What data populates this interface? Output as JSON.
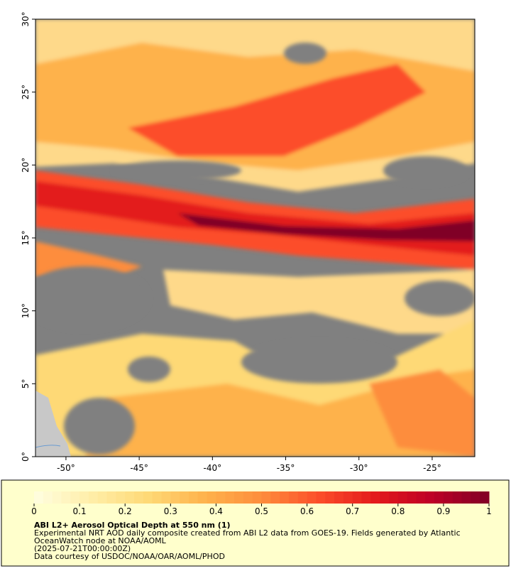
{
  "map": {
    "xlim": [
      -52.08,
      -22.09
    ],
    "ylim": [
      0,
      30
    ],
    "xticks": [
      {
        "value": -50,
        "label": "-50°"
      },
      {
        "value": -45,
        "label": "-45°"
      },
      {
        "value": -40,
        "label": "-40°"
      },
      {
        "value": -35,
        "label": "-35°"
      },
      {
        "value": -30,
        "label": "-30°"
      },
      {
        "value": -25,
        "label": "-25°"
      }
    ],
    "yticks": [
      {
        "value": 0,
        "label": "0°"
      },
      {
        "value": 5,
        "label": "5°"
      },
      {
        "value": 10,
        "label": "10°"
      },
      {
        "value": 15,
        "label": "15°"
      },
      {
        "value": 20,
        "label": "20°"
      },
      {
        "value": 25,
        "label": "25°"
      },
      {
        "value": 30,
        "label": "30°"
      }
    ]
  },
  "colorbar": {
    "lim": [
      0,
      1
    ],
    "ticks": [
      0,
      0.1,
      0.2,
      0.3,
      0.4,
      0.5,
      0.6,
      0.7,
      0.8,
      0.9,
      1
    ],
    "colors": [
      "#fffee0",
      "#ffeea8",
      "#fed976",
      "#feb24c",
      "#fd8d3c",
      "#fc4e2a",
      "#e31a1c",
      "#bd0026",
      "#800026"
    ]
  },
  "legend": {
    "title": "ABI L2+ Aerosol Optical Depth at 550 nm (1)",
    "description": [
      "Experimental NRT AOD daily composite created from ABI L2 data from GOES-19. Fields generated by Atlantic",
      "OceanWatch node at NOAA/AOML",
      "(2025-07-21T00:00:00Z)"
    ],
    "credit": "Data courtesy of USDOC/NOAA/OAR/AOML/PHOD"
  }
}
